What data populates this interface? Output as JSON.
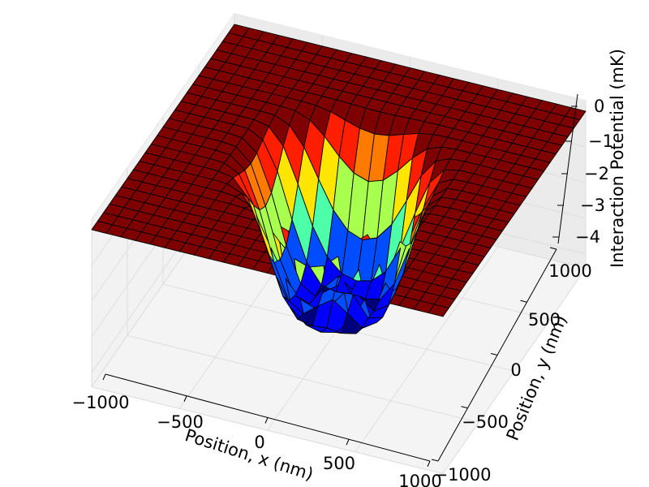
{
  "chart_data": {
    "type": "surface3d",
    "title": "",
    "xlabel": "Position, x (nm)",
    "ylabel": "Position, y (nm)",
    "zlabel": "Interaction Potential (mK)",
    "xlim": [
      -1000,
      1000
    ],
    "ylim": [
      -1000,
      1000
    ],
    "zlim": [
      -4.3,
      0.3
    ],
    "x_ticks": [
      "−1000",
      "−500",
      "0",
      "500",
      "1000"
    ],
    "y_ticks": [
      "−1000",
      "−500",
      "0",
      "500",
      "1000"
    ],
    "z_ticks": [
      "−4",
      "−3",
      "−2",
      "−1",
      "0"
    ],
    "colormap": "jet",
    "grid": true,
    "mesh": {
      "x_points": 25,
      "y_points": 25
    },
    "surface_samples": [
      {
        "x": -1000,
        "y": 0,
        "z": 0.0
      },
      {
        "x": -600,
        "y": 0,
        "z": -1.6
      },
      {
        "x": -380,
        "y": 0,
        "z": -4.2
      },
      {
        "x": 0,
        "y": 0,
        "z": -3.2
      },
      {
        "x": 380,
        "y": 0,
        "z": -4.2
      },
      {
        "x": 600,
        "y": 0,
        "z": -1.6
      },
      {
        "x": 1000,
        "y": 0,
        "z": 0.0
      },
      {
        "x": 0,
        "y": 1000,
        "z": 0.0
      },
      {
        "x": 0,
        "y": 500,
        "z": -2.4
      },
      {
        "x": 0,
        "y": -500,
        "z": -2.4
      }
    ]
  }
}
